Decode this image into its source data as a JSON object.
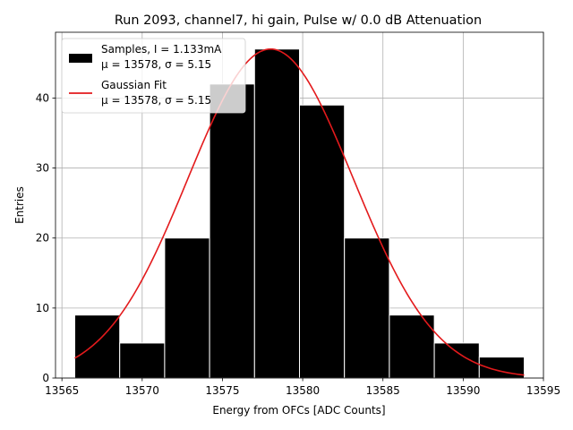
{
  "chart_data": {
    "type": "bar",
    "title": "Run 2093, channel7, hi gain, Pulse w/ 0.0 dB Attenuation",
    "xlabel": "Energy from OFCs [ADC Counts]",
    "ylabel": "Entries",
    "xlim": [
      13564.6,
      13595.0
    ],
    "ylim": [
      0,
      49.4
    ],
    "xticks": [
      13565,
      13570,
      13575,
      13580,
      13585,
      13590,
      13595
    ],
    "yticks": [
      0,
      10,
      20,
      30,
      40
    ],
    "grid": true,
    "legend_position": "top-left",
    "histogram": {
      "name": "Samples, I = 1.133mA",
      "stats": "μ = 13578, σ = 5.15",
      "color": "#000000",
      "edge_color": "#ffffff",
      "bin_edges": [
        13565.8,
        13568.6,
        13571.4,
        13574.2,
        13577.0,
        13579.8,
        13582.6,
        13585.4,
        13588.2,
        13591.0,
        13593.8
      ],
      "values": [
        9,
        5,
        20,
        42,
        47,
        39,
        20,
        9,
        5,
        3
      ]
    },
    "fit": {
      "name": "Gaussian Fit",
      "stats": "μ = 13578, σ = 5.15",
      "color": "#e31a1c",
      "mu": 13578.0,
      "sigma": 5.15,
      "amplitude": 47.0,
      "x_range": [
        13565.8,
        13593.8
      ]
    }
  }
}
